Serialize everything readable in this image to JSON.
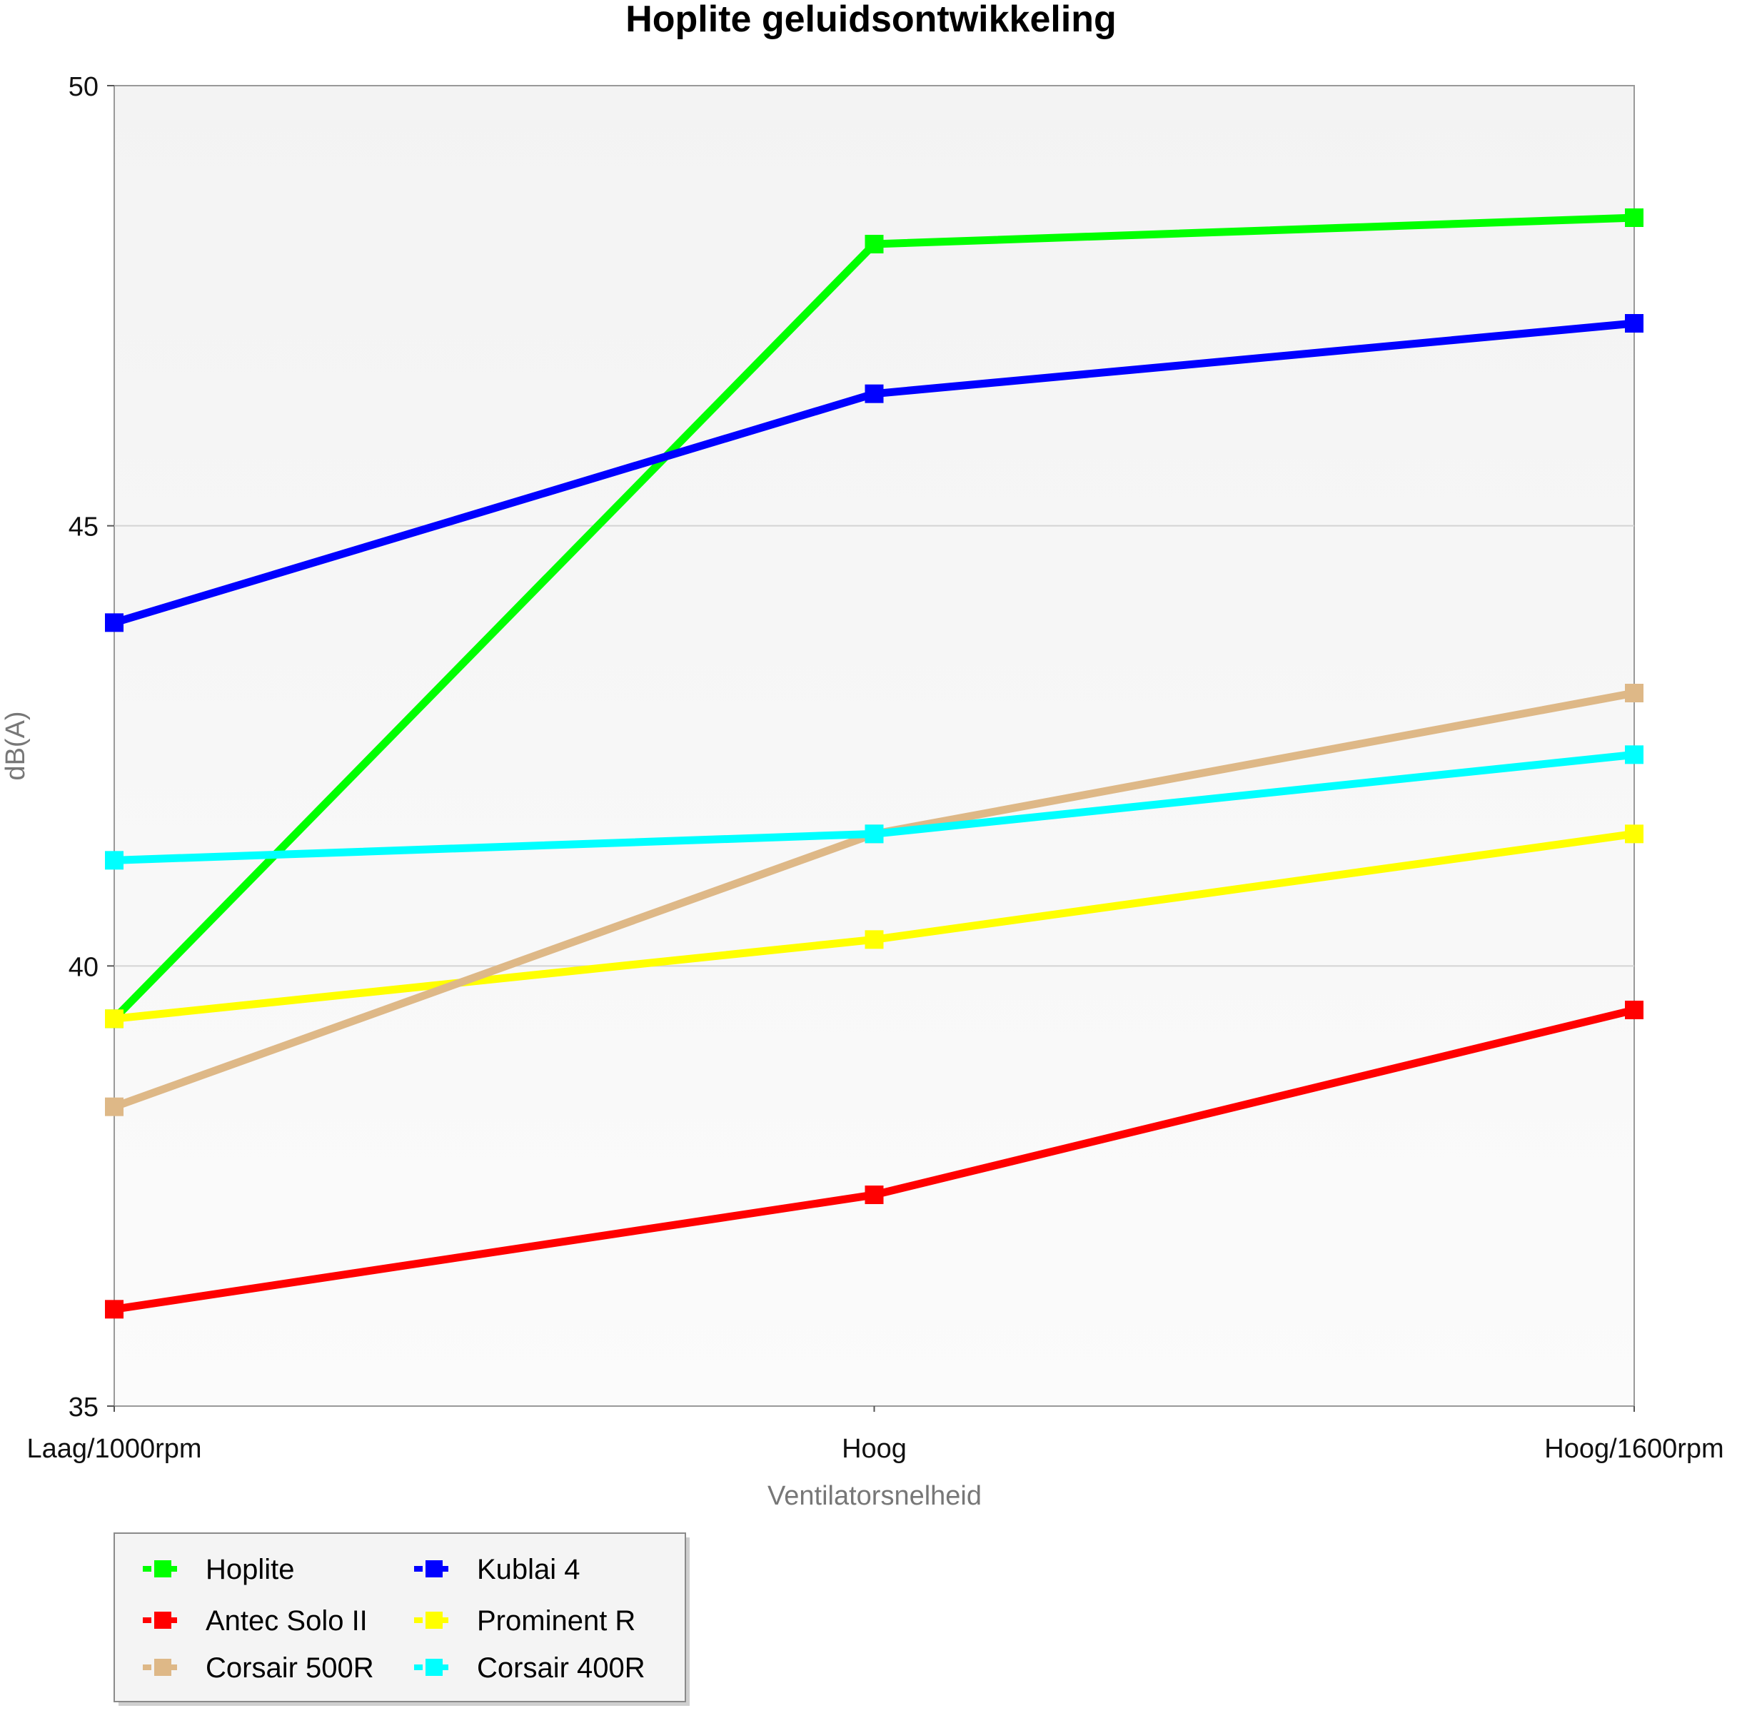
{
  "chart_data": {
    "type": "line",
    "title": "Hoplite geluidsontwikkeling",
    "xlabel": "Ventilatorsnelheid",
    "ylabel": "dB(A)",
    "categories": [
      "Laag/1000rpm",
      "Hoog",
      "Hoog/1600rpm"
    ],
    "ylim": [
      35,
      50
    ],
    "yticks": [
      35,
      40,
      45,
      50
    ],
    "grid": true,
    "legend_position": "bottom-left",
    "series": [
      {
        "name": "Hoplite",
        "color": "#00ff00",
        "values": [
          39.4,
          48.2,
          48.5
        ]
      },
      {
        "name": "Kublai 4",
        "color": "#0000ff",
        "values": [
          43.9,
          46.5,
          47.3
        ]
      },
      {
        "name": "Antec Solo II",
        "color": "#ff0000",
        "values": [
          36.1,
          37.4,
          39.5
        ]
      },
      {
        "name": "Prominent R",
        "color": "#ffff00",
        "values": [
          39.4,
          40.3,
          41.5
        ]
      },
      {
        "name": "Corsair 500R",
        "color": "#deb887",
        "values": [
          38.4,
          41.5,
          43.1
        ]
      },
      {
        "name": "Corsair 400R",
        "color": "#00ffff",
        "values": [
          41.2,
          41.5,
          42.4
        ]
      }
    ]
  }
}
